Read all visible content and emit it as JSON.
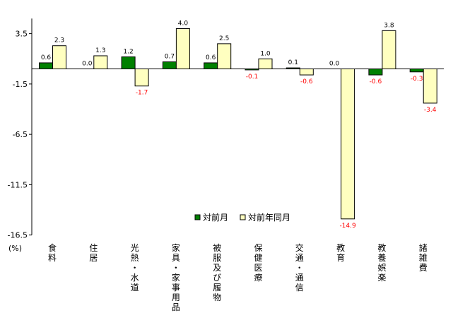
{
  "chart_data": {
    "type": "bar",
    "unit_label": "(%)",
    "categories": [
      "食料",
      "住居",
      "光熱・水道",
      "家具・家事用品",
      "被服及び履物",
      "保健医療",
      "交通・通信",
      "教育",
      "教養娯楽",
      "諸雑費"
    ],
    "series": [
      {
        "name": "対前月",
        "color": "#008000",
        "values": [
          0.6,
          0.0,
          1.2,
          0.7,
          0.6,
          -0.1,
          0.1,
          0.0,
          -0.6,
          -0.3
        ]
      },
      {
        "name": "対前年同月",
        "color": "#ffffc0",
        "values": [
          2.3,
          1.3,
          -1.7,
          4.0,
          2.5,
          1.0,
          -0.6,
          -14.9,
          3.8,
          -3.4
        ]
      }
    ],
    "y_ticks": [
      3.5,
      -1.5,
      -6.5,
      -11.5,
      -16.5
    ],
    "ylim": [
      -16.5,
      5.0
    ],
    "grid": false,
    "legend_position": "bottom-right",
    "negative_label_color": "#ff0000",
    "positive_label_color": "#000000"
  }
}
